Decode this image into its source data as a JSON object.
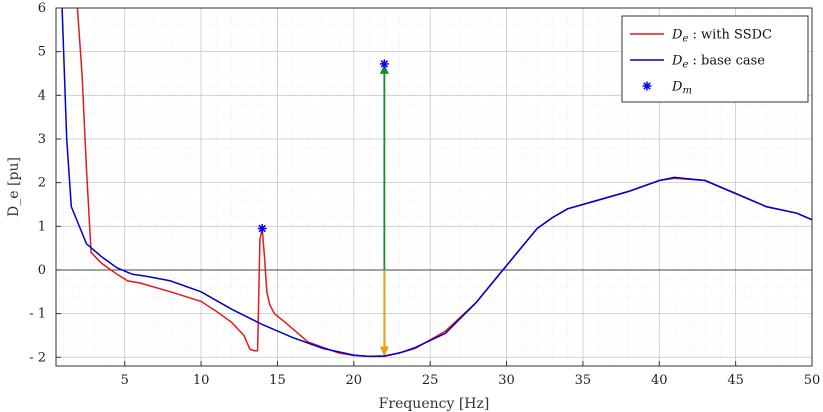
{
  "chart_data": {
    "type": "line",
    "xlabel": "Frequency [Hz]",
    "ylabel": "D_e [pu]",
    "xlim": [
      0.5,
      50
    ],
    "ylim": [
      -2.2,
      6
    ],
    "xticks": [
      5,
      10,
      15,
      20,
      25,
      30,
      35,
      40,
      45,
      50
    ],
    "yticks": [
      -2,
      -1,
      0,
      1,
      2,
      3,
      4,
      5,
      6
    ],
    "ytick_labels": [
      "- 2",
      "- 1",
      "0",
      "1",
      "2",
      "3",
      "4",
      "5",
      "6"
    ],
    "grid": true,
    "legend_position": "top-right",
    "series": [
      {
        "name": "D_e : with SSDC",
        "legend_label": "D_e : with SSDC",
        "color": "#e31a1c",
        "style": "line",
        "x": [
          1.9,
          2.2,
          2.5,
          2.8,
          3.5,
          4.5,
          5.2,
          6,
          8,
          10,
          11,
          12,
          12.8,
          13.2,
          13.5,
          13.7,
          13.85,
          14.0,
          14.15,
          14.3,
          14.5,
          14.8,
          15.5,
          17,
          19,
          20,
          21,
          22,
          23,
          24,
          26,
          28,
          30,
          32,
          33,
          34,
          36,
          38,
          40,
          41,
          43,
          45,
          47,
          49,
          50
        ],
        "y": [
          6,
          4.5,
          2.3,
          0.4,
          0.15,
          -0.1,
          -0.25,
          -0.3,
          -0.5,
          -0.72,
          -0.95,
          -1.2,
          -1.5,
          -1.82,
          -1.85,
          -1.85,
          0.7,
          0.95,
          0.3,
          -0.5,
          -0.8,
          -1.0,
          -1.2,
          -1.65,
          -1.9,
          -1.96,
          -1.98,
          -1.98,
          -1.9,
          -1.8,
          -1.4,
          -0.75,
          0.1,
          0.95,
          1.2,
          1.4,
          1.6,
          1.8,
          2.05,
          2.1,
          2.05,
          1.75,
          1.45,
          1.3,
          1.15
        ]
      },
      {
        "name": "D_e : base case",
        "legend_label": "D_e : base case",
        "color": "#0000cc",
        "style": "line",
        "x": [
          0.9,
          1.2,
          1.5,
          2.5,
          3.5,
          4.5,
          5.5,
          6.5,
          8,
          10,
          12,
          14,
          16,
          18,
          20,
          21,
          22,
          23,
          24,
          26,
          28,
          30,
          32,
          33,
          34,
          36,
          38,
          40,
          41,
          43,
          45,
          47,
          49,
          50
        ],
        "y": [
          6,
          3.0,
          1.45,
          0.6,
          0.3,
          0.05,
          -0.1,
          -0.15,
          -0.25,
          -0.5,
          -0.9,
          -1.25,
          -1.55,
          -1.8,
          -1.95,
          -1.98,
          -1.97,
          -1.9,
          -1.78,
          -1.45,
          -0.75,
          0.1,
          0.95,
          1.2,
          1.4,
          1.6,
          1.8,
          2.05,
          2.12,
          2.05,
          1.75,
          1.45,
          1.3,
          1.15
        ]
      },
      {
        "name": "D_m",
        "legend_label": "D_m",
        "color": "#0000ff",
        "style": "marker",
        "x": [
          14,
          22
        ],
        "y": [
          0.95,
          4.72
        ]
      }
    ],
    "annotations": [
      {
        "type": "arrow",
        "x": 22,
        "y_from": -1.98,
        "y_to": 4.72,
        "color": "#1a8a2e",
        "head": "up"
      },
      {
        "type": "arrow",
        "x": 22,
        "y_from": 0,
        "y_to": -1.98,
        "color": "#f39c12",
        "head": "down"
      },
      {
        "type": "hline",
        "y": 0,
        "color": "#444444"
      }
    ]
  }
}
